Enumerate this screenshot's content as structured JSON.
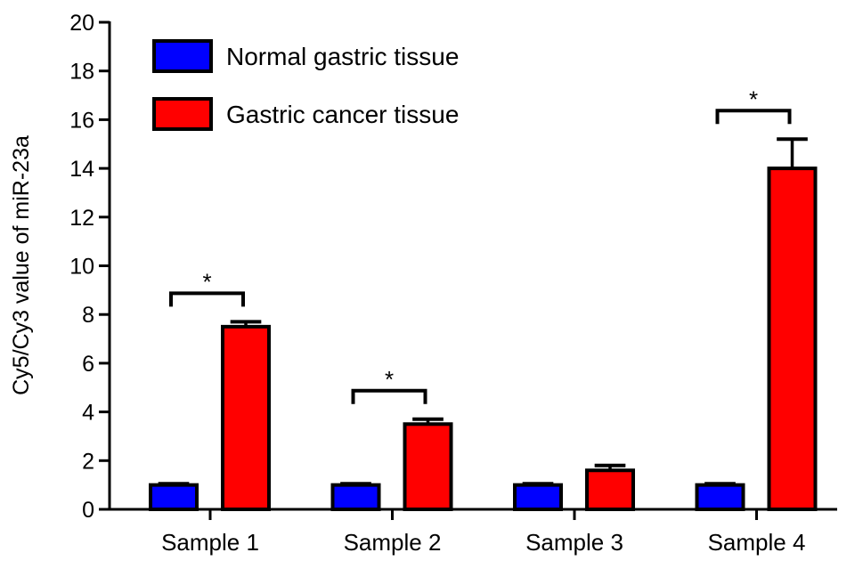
{
  "chart_data": {
    "type": "bar",
    "title": "",
    "xlabel": "",
    "ylabel": "Cy5/Cy3 value of miR-23a",
    "ylim": [
      0,
      20
    ],
    "yticks": [
      0,
      2,
      4,
      6,
      8,
      10,
      12,
      14,
      16,
      18,
      20
    ],
    "categories": [
      "Sample 1",
      "Sample 2",
      "Sample 3",
      "Sample 4"
    ],
    "series": [
      {
        "name": "Normal gastric tissue",
        "color": "#0000ff",
        "values": [
          1.0,
          1.0,
          1.0,
          1.0
        ],
        "errors": [
          0.05,
          0.05,
          0.05,
          0.05
        ]
      },
      {
        "name": "Gastric cancer tissue",
        "color": "#ff0000",
        "values": [
          7.5,
          3.5,
          1.6,
          14.0
        ],
        "errors": [
          0.2,
          0.2,
          0.2,
          1.2
        ]
      }
    ],
    "significance": [
      {
        "category": "Sample 1",
        "label": "*"
      },
      {
        "category": "Sample 2",
        "label": "*"
      },
      {
        "category": "Sample 4",
        "label": "*"
      }
    ],
    "legend_position": "top-left",
    "grid": false
  }
}
